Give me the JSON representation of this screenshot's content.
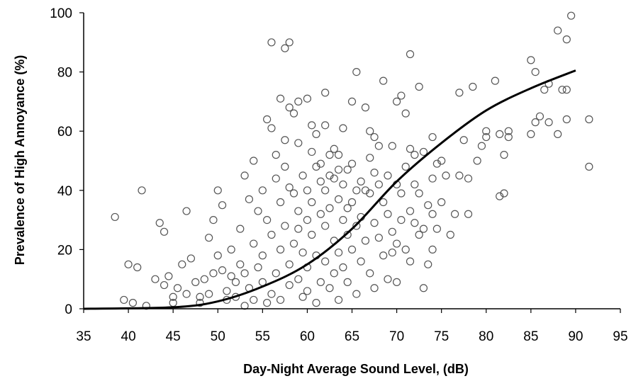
{
  "chart_data": {
    "type": "scatter",
    "xlabel": "Day-Night Average Sound Level, (dB)",
    "ylabel": "Prevalence of High Annoyance (%)",
    "xlim": [
      35,
      95
    ],
    "ylim": [
      0,
      100
    ],
    "xticks": [
      35,
      40,
      45,
      50,
      55,
      60,
      65,
      70,
      75,
      80,
      85,
      90,
      95
    ],
    "yticks": [
      0,
      20,
      40,
      60,
      80,
      100
    ],
    "grid": false,
    "legend": "none",
    "marker": "open-circle",
    "colors": {
      "marker": "#555555",
      "curve": "#000000",
      "axis": "#000000"
    },
    "series": [
      {
        "type": "scatter",
        "points": [
          [
            38.5,
            31
          ],
          [
            39.5,
            3
          ],
          [
            40,
            15
          ],
          [
            41,
            14
          ],
          [
            41.5,
            40
          ],
          [
            40.5,
            2
          ],
          [
            42,
            1
          ],
          [
            43,
            10
          ],
          [
            43.5,
            29
          ],
          [
            44,
            26
          ],
          [
            44,
            8
          ],
          [
            44.5,
            11
          ],
          [
            45,
            2
          ],
          [
            45,
            4
          ],
          [
            45.5,
            7
          ],
          [
            46,
            15
          ],
          [
            46.5,
            5
          ],
          [
            46.5,
            33
          ],
          [
            47,
            17
          ],
          [
            47.5,
            9
          ],
          [
            48,
            2
          ],
          [
            48,
            4
          ],
          [
            48.5,
            10
          ],
          [
            49,
            5
          ],
          [
            49,
            24
          ],
          [
            49.5,
            12
          ],
          [
            49.5,
            30
          ],
          [
            50,
            40
          ],
          [
            50,
            18
          ],
          [
            50.5,
            13
          ],
          [
            50.5,
            35
          ],
          [
            51,
            3
          ],
          [
            51,
            6
          ],
          [
            51.5,
            11
          ],
          [
            51.5,
            20
          ],
          [
            52,
            4
          ],
          [
            52,
            9
          ],
          [
            52.5,
            15
          ],
          [
            52.5,
            27
          ],
          [
            53,
            1
          ],
          [
            53,
            12
          ],
          [
            53,
            45
          ],
          [
            53.5,
            37
          ],
          [
            53.5,
            7
          ],
          [
            54,
            50
          ],
          [
            54,
            22
          ],
          [
            54,
            3
          ],
          [
            54.5,
            14
          ],
          [
            54.5,
            33
          ],
          [
            55,
            9
          ],
          [
            55,
            18
          ],
          [
            55,
            40
          ],
          [
            55.5,
            2
          ],
          [
            55.5,
            30
          ],
          [
            55.5,
            64
          ],
          [
            56,
            90
          ],
          [
            56,
            61
          ],
          [
            56,
            5
          ],
          [
            56,
            25
          ],
          [
            56.5,
            52
          ],
          [
            56.5,
            44
          ],
          [
            56.5,
            12
          ],
          [
            57,
            71
          ],
          [
            57,
            36
          ],
          [
            57,
            20
          ],
          [
            57,
            3
          ],
          [
            57.5,
            88
          ],
          [
            57.5,
            57
          ],
          [
            57.5,
            48
          ],
          [
            57.5,
            28
          ],
          [
            58,
            90
          ],
          [
            58,
            68
          ],
          [
            58,
            41
          ],
          [
            58,
            15
          ],
          [
            58,
            8
          ],
          [
            58.5,
            66
          ],
          [
            58.5,
            39
          ],
          [
            58.5,
            22
          ],
          [
            59,
            70
          ],
          [
            59,
            56
          ],
          [
            59,
            33
          ],
          [
            59,
            27
          ],
          [
            59,
            10
          ],
          [
            59.5,
            45
          ],
          [
            59.5,
            19
          ],
          [
            59.5,
            4
          ],
          [
            60,
            71
          ],
          [
            60,
            40
          ],
          [
            60,
            30
          ],
          [
            60,
            14
          ],
          [
            60,
            6
          ],
          [
            60.5,
            62
          ],
          [
            60.5,
            53
          ],
          [
            60.5,
            36
          ],
          [
            60.5,
            25
          ],
          [
            61,
            59
          ],
          [
            61,
            48
          ],
          [
            61,
            18
          ],
          [
            61,
            2
          ],
          [
            61.5,
            49
          ],
          [
            61.5,
            43
          ],
          [
            61.5,
            32
          ],
          [
            61.5,
            9
          ],
          [
            62,
            73
          ],
          [
            62,
            62
          ],
          [
            62,
            40
          ],
          [
            62,
            28
          ],
          [
            62,
            16
          ],
          [
            62.5,
            52
          ],
          [
            62.5,
            45
          ],
          [
            62.5,
            34
          ],
          [
            62.5,
            7
          ],
          [
            63,
            54
          ],
          [
            63,
            44
          ],
          [
            63,
            23
          ],
          [
            63,
            12
          ],
          [
            63.5,
            52
          ],
          [
            63.5,
            47
          ],
          [
            63.5,
            37
          ],
          [
            63.5,
            19
          ],
          [
            63.5,
            3
          ],
          [
            64,
            61
          ],
          [
            64,
            42
          ],
          [
            64,
            30
          ],
          [
            64,
            14
          ],
          [
            64.5,
            47
          ],
          [
            64.5,
            34
          ],
          [
            64.5,
            25
          ],
          [
            64.5,
            9
          ],
          [
            65,
            70
          ],
          [
            65,
            49
          ],
          [
            65,
            36
          ],
          [
            65,
            20
          ],
          [
            65.5,
            80
          ],
          [
            65.5,
            40
          ],
          [
            65.5,
            28
          ],
          [
            65.5,
            5
          ],
          [
            66,
            43
          ],
          [
            66,
            31
          ],
          [
            66,
            16
          ],
          [
            66.5,
            68
          ],
          [
            66.5,
            40
          ],
          [
            66.5,
            23
          ],
          [
            67,
            60
          ],
          [
            67,
            51
          ],
          [
            67,
            39
          ],
          [
            67,
            12
          ],
          [
            67.5,
            58
          ],
          [
            67.5,
            46
          ],
          [
            67.5,
            29
          ],
          [
            67.5,
            7
          ],
          [
            68,
            55
          ],
          [
            68,
            42
          ],
          [
            68,
            24
          ],
          [
            68.5,
            77
          ],
          [
            68.5,
            36
          ],
          [
            68.5,
            18
          ],
          [
            69,
            45
          ],
          [
            69,
            32
          ],
          [
            69,
            10
          ],
          [
            69.5,
            55
          ],
          [
            69.5,
            26
          ],
          [
            69.5,
            19
          ],
          [
            70,
            70
          ],
          [
            70,
            42
          ],
          [
            70,
            22
          ],
          [
            70,
            9
          ],
          [
            70.5,
            72
          ],
          [
            70.5,
            39
          ],
          [
            70.5,
            30
          ],
          [
            71,
            66
          ],
          [
            71,
            48
          ],
          [
            71,
            20
          ],
          [
            71.5,
            86
          ],
          [
            71.5,
            54
          ],
          [
            71.5,
            33
          ],
          [
            71.5,
            16
          ],
          [
            72,
            52
          ],
          [
            72,
            42
          ],
          [
            72,
            29
          ],
          [
            72.5,
            75
          ],
          [
            72.5,
            39
          ],
          [
            72.5,
            25
          ],
          [
            73,
            53
          ],
          [
            73,
            27
          ],
          [
            73,
            7
          ],
          [
            73.5,
            35
          ],
          [
            73.5,
            15
          ],
          [
            74,
            58
          ],
          [
            74,
            44
          ],
          [
            74,
            32
          ],
          [
            74,
            20
          ],
          [
            74.5,
            49
          ],
          [
            74.5,
            27
          ],
          [
            75,
            50
          ],
          [
            75,
            36
          ],
          [
            75.5,
            45
          ],
          [
            76,
            25
          ],
          [
            76.5,
            32
          ],
          [
            77,
            73
          ],
          [
            77,
            45
          ],
          [
            77.5,
            57
          ],
          [
            78,
            44
          ],
          [
            78,
            32
          ],
          [
            78.5,
            75
          ],
          [
            79,
            50
          ],
          [
            79.5,
            55
          ],
          [
            80,
            60
          ],
          [
            80,
            58
          ],
          [
            81,
            77
          ],
          [
            81.5,
            59
          ],
          [
            81.5,
            38
          ],
          [
            82,
            39
          ],
          [
            82,
            52
          ],
          [
            82.5,
            60
          ],
          [
            82.5,
            58
          ],
          [
            85,
            59
          ],
          [
            85,
            84
          ],
          [
            85.5,
            80
          ],
          [
            85.5,
            63
          ],
          [
            86,
            65
          ],
          [
            86.5,
            74
          ],
          [
            87,
            76
          ],
          [
            87,
            63
          ],
          [
            88,
            59
          ],
          [
            88,
            94
          ],
          [
            88.5,
            74
          ],
          [
            89,
            74
          ],
          [
            89,
            64
          ],
          [
            89,
            91
          ],
          [
            89.5,
            99
          ],
          [
            91.5,
            64
          ],
          [
            91.5,
            48
          ]
        ]
      },
      {
        "type": "line",
        "points": [
          [
            35,
            0
          ],
          [
            45,
            0.5
          ],
          [
            50,
            2.5
          ],
          [
            55,
            7.5
          ],
          [
            60,
            15
          ],
          [
            65,
            27
          ],
          [
            70,
            43
          ],
          [
            75,
            56
          ],
          [
            80,
            67
          ],
          [
            85,
            74.5
          ],
          [
            90,
            80.5
          ]
        ]
      }
    ]
  }
}
